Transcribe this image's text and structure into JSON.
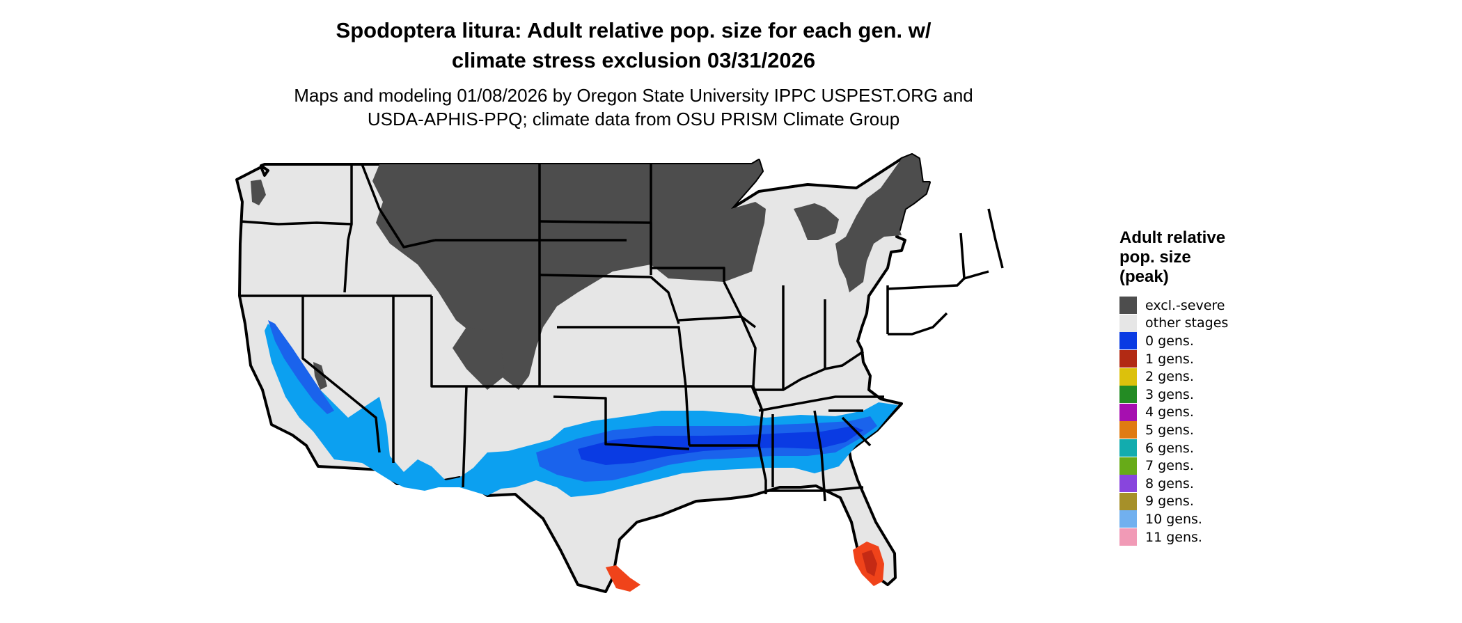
{
  "title_line1": "Spodoptera litura: Adult relative pop. size for each gen. w/",
  "title_line2": "climate stress exclusion 03/31/2026",
  "subtitle_line1": "Maps and modeling 01/08/2026 by Oregon State University IPPC USPEST.ORG and",
  "subtitle_line2": "USDA-APHIS-PPQ; climate data from OSU PRISM Climate Group",
  "legend": {
    "title_line1": "Adult relative",
    "title_line2": "pop. size",
    "title_line3": "(peak)",
    "items": [
      {
        "label": "excl.-severe",
        "color": "#4d4d4d"
      },
      {
        "label": "other stages",
        "color": "#e6e6e6"
      },
      {
        "label": "0 gens.",
        "color": "#0a3be3"
      },
      {
        "label": "1 gens.",
        "color": "#b22a14"
      },
      {
        "label": "2 gens.",
        "color": "#dcc10c"
      },
      {
        "label": "3 gens.",
        "color": "#238b23"
      },
      {
        "label": "4 gens.",
        "color": "#a60fb0"
      },
      {
        "label": "5 gens.",
        "color": "#e07b12"
      },
      {
        "label": "6 gens.",
        "color": "#12acae"
      },
      {
        "label": "7 gens.",
        "color": "#67ab18"
      },
      {
        "label": "8 gens.",
        "color": "#8845dd"
      },
      {
        "label": "9 gens.",
        "color": "#a69029"
      },
      {
        "label": "10 gens.",
        "color": "#71b0ef"
      },
      {
        "label": "11 gens.",
        "color": "#f19ab6"
      }
    ]
  },
  "map_colors": {
    "state_fill": "#e6e6e6",
    "excluded": "#4d4d4d",
    "border": "#000000",
    "zone_light": "#0ca0f0",
    "zone_mid": "#1a63ec",
    "zone_dark": "#0a3be3",
    "zone_florida_outer": "#f0431a",
    "zone_florida_inner": "#c52a14"
  }
}
